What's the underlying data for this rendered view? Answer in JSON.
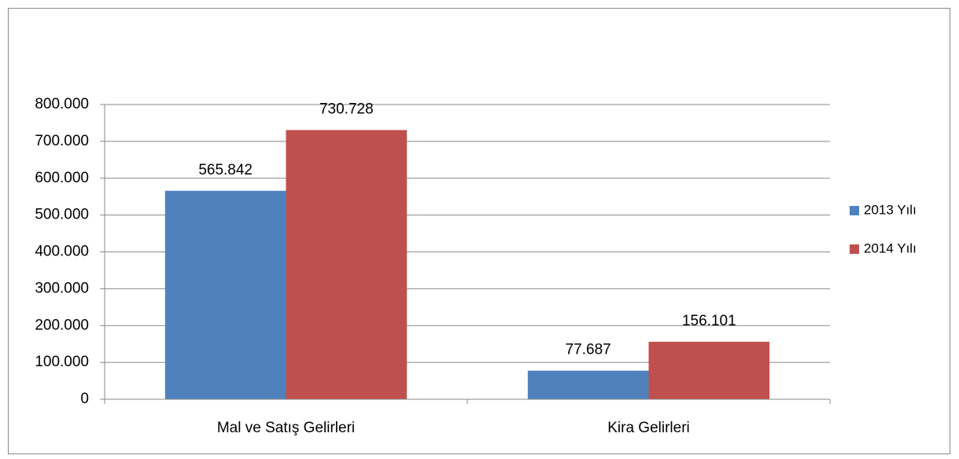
{
  "chart_data": {
    "type": "bar",
    "categories": [
      "Mal ve Satış Gelirleri",
      "Kira Gelirleri"
    ],
    "series": [
      {
        "name": "2013 Yılı",
        "color": "#4f81bd",
        "values": [
          565842,
          77687
        ],
        "value_labels": [
          "565.842",
          "77.687"
        ]
      },
      {
        "name": "2014 Yılı",
        "color": "#c0504d",
        "values": [
          730728,
          156101
        ],
        "value_labels": [
          "730.728",
          "156.101"
        ]
      }
    ],
    "ylim": [
      0,
      800000
    ],
    "yticks": [
      0,
      {
        "value": 100000,
        "label": "100.000"
      },
      {
        "value": 200000,
        "label": "200.000"
      },
      {
        "value": 300000,
        "label": "300.000"
      },
      {
        "value": 400000,
        "label": "400.000"
      },
      {
        "value": 500000,
        "label": "500.000"
      },
      {
        "value": 600000,
        "label": "600.000"
      },
      {
        "value": 700000,
        "label": "700.000"
      },
      {
        "value": 800000,
        "label": "800.000"
      }
    ],
    "grid": true,
    "legend": "right"
  }
}
